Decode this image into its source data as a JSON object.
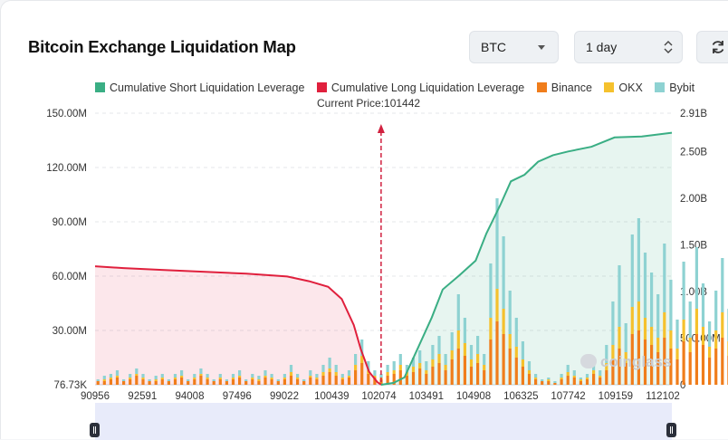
{
  "header": {
    "title": "Bitcoin Exchange Liquidation Map",
    "symbol_select": "BTC",
    "range_select": "1 day",
    "refresh_icon": "refresh-icon"
  },
  "current_price_label": "Current Price:101442",
  "watermark": "coinglass",
  "chart_data": {
    "type": "bar",
    "title": "Bitcoin Exchange Liquidation Map",
    "current_price": 101442,
    "x_tick_labels": [
      "90956",
      "92591",
      "94008",
      "97496",
      "99022",
      "100439",
      "102074",
      "103491",
      "104908",
      "106325",
      "107742",
      "109159",
      "112102"
    ],
    "x_range": [
      90956,
      112102
    ],
    "y_left": {
      "ticks": [
        "76.73K",
        "30.00M",
        "60.00M",
        "90.00M",
        "120.00M",
        "150.00M"
      ],
      "range": [
        0,
        150000000
      ]
    },
    "y_right": {
      "ticks": [
        "0",
        "500.00M",
        "1.00B",
        "1.50B",
        "2.00B",
        "2.50B",
        "2.91B"
      ],
      "range": [
        0,
        2910000000
      ]
    },
    "legend": [
      {
        "name": "Cumulative Short Liquidation Leverage",
        "color": "#3aae84"
      },
      {
        "name": "Cumulative Long Liquidation Leverage",
        "color": "#e0203d"
      },
      {
        "name": "Binance",
        "color": "#f07d1b"
      },
      {
        "name": "OKX",
        "color": "#f5c12d"
      },
      {
        "name": "Bybit",
        "color": "#8ed2d2"
      }
    ],
    "grid": true,
    "legend_position": "top",
    "bars": {
      "price_start": 91062,
      "price_step": 236,
      "binance_M": [
        2,
        2,
        3,
        4,
        2,
        3,
        5,
        3,
        2,
        2,
        3,
        2,
        3,
        4,
        2,
        3,
        5,
        3,
        2,
        3,
        2,
        3,
        4,
        2,
        3,
        2,
        4,
        3,
        2,
        3,
        5,
        3,
        2,
        4,
        3,
        5,
        7,
        5,
        3,
        4,
        8,
        12,
        6,
        4,
        3,
        5,
        6,
        8,
        5,
        7,
        9,
        6,
        10,
        12,
        8,
        14,
        20,
        16,
        10,
        12,
        8,
        25,
        35,
        28,
        20,
        15,
        10,
        6,
        3,
        2,
        2,
        1,
        3,
        5,
        4,
        2,
        3,
        6,
        4,
        8,
        14,
        20,
        12,
        28,
        30,
        25,
        22,
        18,
        26,
        20,
        14,
        24,
        18,
        28,
        22,
        15,
        20,
        26,
        16,
        12,
        18,
        24,
        20,
        14,
        18,
        16,
        12,
        20,
        14,
        18,
        12,
        16,
        20,
        24,
        18,
        28,
        22,
        26,
        30,
        24,
        22,
        18,
        14,
        10,
        16,
        12,
        14,
        8,
        10,
        6,
        8,
        6,
        8,
        5,
        6,
        4,
        5,
        6,
        4,
        5,
        3,
        4,
        5,
        6,
        4,
        3,
        4,
        3,
        2,
        3,
        4,
        3,
        4,
        3,
        2,
        3,
        2,
        3,
        2,
        3
      ],
      "okx_M": [
        0,
        1,
        1,
        1,
        0,
        1,
        1,
        1,
        0,
        1,
        1,
        0,
        1,
        1,
        0,
        1,
        1,
        1,
        0,
        1,
        0,
        1,
        1,
        0,
        1,
        1,
        1,
        1,
        0,
        1,
        2,
        1,
        0,
        1,
        1,
        2,
        2,
        2,
        1,
        1,
        3,
        4,
        2,
        1,
        1,
        2,
        2,
        3,
        2,
        3,
        3,
        2,
        4,
        5,
        3,
        5,
        10,
        7,
        4,
        5,
        3,
        12,
        18,
        14,
        8,
        6,
        4,
        2,
        1,
        0,
        1,
        0,
        1,
        2,
        1,
        1,
        1,
        2,
        1,
        4,
        8,
        12,
        6,
        15,
        16,
        12,
        10,
        8,
        14,
        10,
        6,
        12,
        8,
        14,
        10,
        6,
        10,
        14,
        8,
        5,
        8,
        12,
        10,
        6,
        8,
        7,
        5,
        10,
        6,
        8,
        5,
        7,
        10,
        12,
        8,
        15,
        11,
        14,
        16,
        12,
        10,
        8,
        6,
        4,
        7,
        5,
        6,
        3,
        4,
        2,
        3,
        2,
        3,
        2,
        2,
        1,
        2,
        2,
        1,
        2,
        1,
        1,
        2,
        2,
        1,
        1,
        1,
        1,
        1,
        1,
        1,
        1,
        1,
        1,
        1,
        1,
        1,
        1,
        1,
        1
      ],
      "bybit_M": [
        1,
        2,
        2,
        3,
        1,
        2,
        3,
        2,
        1,
        2,
        2,
        1,
        2,
        3,
        1,
        2,
        3,
        2,
        1,
        2,
        1,
        2,
        3,
        1,
        2,
        2,
        3,
        2,
        1,
        2,
        4,
        2,
        1,
        3,
        2,
        4,
        6,
        4,
        2,
        3,
        6,
        9,
        5,
        3,
        2,
        4,
        5,
        6,
        4,
        5,
        7,
        5,
        8,
        10,
        6,
        10,
        20,
        14,
        8,
        10,
        6,
        30,
        50,
        40,
        24,
        16,
        10,
        5,
        2,
        1,
        1,
        1,
        2,
        4,
        3,
        1,
        2,
        5,
        3,
        10,
        24,
        34,
        16,
        40,
        46,
        36,
        30,
        24,
        38,
        28,
        16,
        32,
        20,
        34,
        24,
        14,
        22,
        30,
        18,
        10,
        18,
        30,
        22,
        12,
        18,
        14,
        10,
        24,
        12,
        20,
        10,
        16,
        24,
        30,
        20,
        44,
        32,
        38,
        50,
        36,
        30,
        22,
        14,
        8,
        16,
        10,
        14,
        6,
        8,
        4,
        6,
        4,
        6,
        3,
        4,
        2,
        3,
        4,
        2,
        3,
        2,
        2,
        3,
        4,
        2,
        2,
        2,
        2,
        1,
        2,
        2,
        2,
        2,
        1,
        1,
        1,
        1,
        1,
        1,
        1
      ]
    },
    "long_cumulative": {
      "prices": [
        90956,
        92000,
        93500,
        95000,
        96500,
        98000,
        98800,
        99500,
        100000,
        100439,
        100700,
        101000,
        101300,
        101442
      ],
      "values_B": [
        1.27,
        1.25,
        1.23,
        1.21,
        1.19,
        1.16,
        1.11,
        1.05,
        0.92,
        0.64,
        0.38,
        0.14,
        0.03,
        0.0
      ]
    },
    "short_cumulative": {
      "prices": [
        101442,
        101900,
        102300,
        102800,
        103300,
        103700,
        104300,
        104908,
        105300,
        105800,
        106200,
        106700,
        107200,
        107742,
        108300,
        109159,
        110000,
        111000,
        112102
      ],
      "values_B": [
        0.0,
        0.02,
        0.08,
        0.4,
        0.72,
        1.02,
        1.17,
        1.33,
        1.62,
        1.92,
        2.18,
        2.25,
        2.39,
        2.46,
        2.5,
        2.55,
        2.65,
        2.66,
        2.7
      ]
    }
  }
}
